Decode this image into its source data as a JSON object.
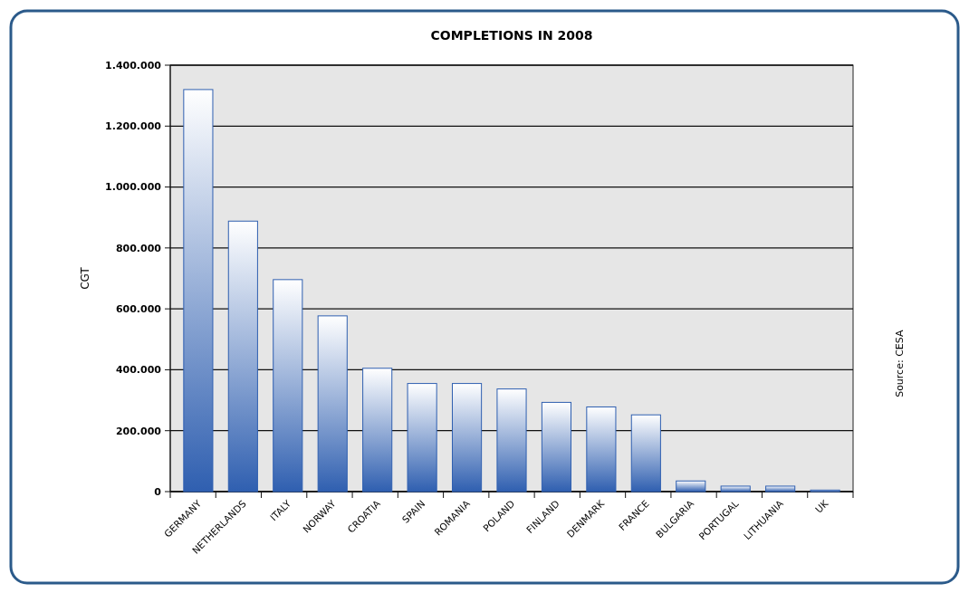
{
  "chart_data": {
    "type": "bar",
    "title": "COMPLETIONS IN 2008",
    "ylabel": "CGT",
    "categories": [
      "GERMANY",
      "NETHERLANDS",
      "ITALY",
      "NORWAY",
      "CROATIA",
      "SPAIN",
      "ROMANIA",
      "POLAND",
      "FINLAND",
      "DENMARK",
      "FRANCE",
      "BULGARIA",
      "PORTUGAL",
      "LITHUANIA",
      "UK"
    ],
    "values": [
      1320000,
      888000,
      696000,
      577000,
      405000,
      355000,
      355000,
      337000,
      293000,
      278000,
      252000,
      35000,
      18000,
      18000,
      5000
    ],
    "color": "#2f5fb0",
    "ylim": [
      0,
      1400000
    ],
    "yticks": [
      {
        "value": 0,
        "label": "0"
      },
      {
        "value": 200000,
        "label": "200.000"
      },
      {
        "value": 400000,
        "label": "400.000"
      },
      {
        "value": 600000,
        "label": "600.000"
      },
      {
        "value": 800000,
        "label": "800.000"
      },
      {
        "value": 1000000,
        "label": "1.000.000"
      },
      {
        "value": 1200000,
        "label": "1.200.000"
      },
      {
        "value": 1400000,
        "label": "1.400.000"
      }
    ],
    "grid": "y",
    "annotations": [
      "Source: CESA"
    ]
  }
}
